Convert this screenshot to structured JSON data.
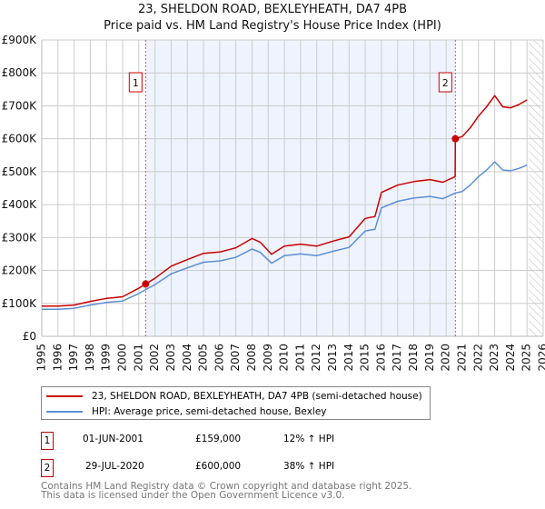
{
  "title": {
    "line1": "23, SHELDON ROAD, BEXLEYHEATH, DA7 4PB",
    "line2": "Price paid vs. HM Land Registry's House Price Index (HPI)"
  },
  "legend": {
    "property": "23, SHELDON ROAD, BEXLEYHEATH, DA7 4PB (semi-detached house)",
    "hpi": "HPI: Average price, semi-detached house, Bexley"
  },
  "sales": [
    {
      "num": "1",
      "date": "01-JUN-2001",
      "price": "£159,000",
      "delta": "12% ↑ HPI"
    },
    {
      "num": "2",
      "date": "29-JUL-2020",
      "price": "£600,000",
      "delta": "38% ↑ HPI"
    }
  ],
  "footer": {
    "line1": "Contains HM Land Registry data © Crown copyright and database right 2025.",
    "line2": "This data is licensed under the Open Government Licence v3.0."
  },
  "chart_data": {
    "type": "line",
    "title": "Price paid vs. HM Land Registry's House Price Index (HPI)",
    "xlim": [
      1995,
      2026
    ],
    "ylim": [
      0,
      900000
    ],
    "x_ticks": [
      "1995",
      "1996",
      "1997",
      "1998",
      "1999",
      "2000",
      "2001",
      "2002",
      "2003",
      "2004",
      "2005",
      "2006",
      "2007",
      "2008",
      "2009",
      "2010",
      "2011",
      "2012",
      "2013",
      "2014",
      "2015",
      "2016",
      "2017",
      "2018",
      "2019",
      "2020",
      "2021",
      "2022",
      "2023",
      "2024",
      "2025",
      "2026"
    ],
    "y_ticks": [
      {
        "v": 0,
        "label": "£0"
      },
      {
        "v": 100000,
        "label": "£100K"
      },
      {
        "v": 200000,
        "label": "£200K"
      },
      {
        "v": 300000,
        "label": "£300K"
      },
      {
        "v": 400000,
        "label": "£400K"
      },
      {
        "v": 500000,
        "label": "£500K"
      },
      {
        "v": 600000,
        "label": "£600K"
      },
      {
        "v": 700000,
        "label": "£700K"
      },
      {
        "v": 800000,
        "label": "£800K"
      },
      {
        "v": 900000,
        "label": "£900K"
      }
    ],
    "grid": true,
    "shaded_range": [
      2001.42,
      2020.57
    ],
    "forecast_hatch_from": 2025.1,
    "colors": {
      "property": "#cc0000",
      "hpi": "#5b8fd4",
      "shade": "#eef3fd"
    },
    "markers": [
      {
        "label": "1",
        "x": 2001.42,
        "y": 159000
      },
      {
        "label": "2",
        "x": 2020.57,
        "y": 600000
      }
    ],
    "series": [
      {
        "name": "HPI: Average price, semi-detached house, Bexley",
        "key": "hpi",
        "x": [
          1995,
          1996,
          1997,
          1998,
          1999,
          2000,
          2001,
          2001.42,
          2002,
          2003,
          2004,
          2005,
          2006,
          2007,
          2008,
          2008.5,
          2009.2,
          2010,
          2011,
          2012,
          2013,
          2014,
          2015,
          2015.6,
          2016,
          2017,
          2018,
          2019,
          2019.8,
          2020.57,
          2021,
          2021.5,
          2022,
          2022.5,
          2023,
          2023.5,
          2024,
          2024.5,
          2025
        ],
        "y": [
          82000,
          82000,
          85000,
          95000,
          103000,
          107000,
          130000,
          142000,
          157000,
          190000,
          208000,
          225000,
          229000,
          240000,
          265000,
          255000,
          222000,
          245000,
          250000,
          245000,
          258000,
          270000,
          320000,
          325000,
          390000,
          410000,
          420000,
          425000,
          418000,
          435000,
          440000,
          460000,
          485000,
          505000,
          530000,
          505000,
          503000,
          510000,
          520000
        ]
      },
      {
        "name": "23, SHELDON ROAD, BEXLEYHEATH, DA7 4PB (semi-detached house)",
        "key": "property",
        "x": [
          1995,
          1996,
          1997,
          1998,
          1999,
          2000,
          2001,
          2001.42,
          2002,
          2003,
          2004,
          2005,
          2006,
          2007,
          2008,
          2008.5,
          2009.2,
          2010,
          2011,
          2012,
          2013,
          2014,
          2015,
          2015.6,
          2016,
          2017,
          2018,
          2019,
          2019.8,
          2020.56,
          2020.57,
          2021,
          2021.5,
          2022,
          2022.5,
          2023,
          2023.5,
          2024,
          2024.5,
          2025
        ],
        "y": [
          92000,
          92000,
          95000,
          106000,
          115000,
          120000,
          146000,
          159000,
          176000,
          213000,
          233000,
          252000,
          256000,
          269000,
          297000,
          286000,
          249000,
          274000,
          280000,
          274000,
          289000,
          302000,
          358000,
          364000,
          437000,
          459000,
          470000,
          476000,
          468000,
          485000,
          600000,
          607000,
          634000,
          669000,
          697000,
          731000,
          697000,
          694000,
          704000,
          718000
        ]
      }
    ]
  }
}
